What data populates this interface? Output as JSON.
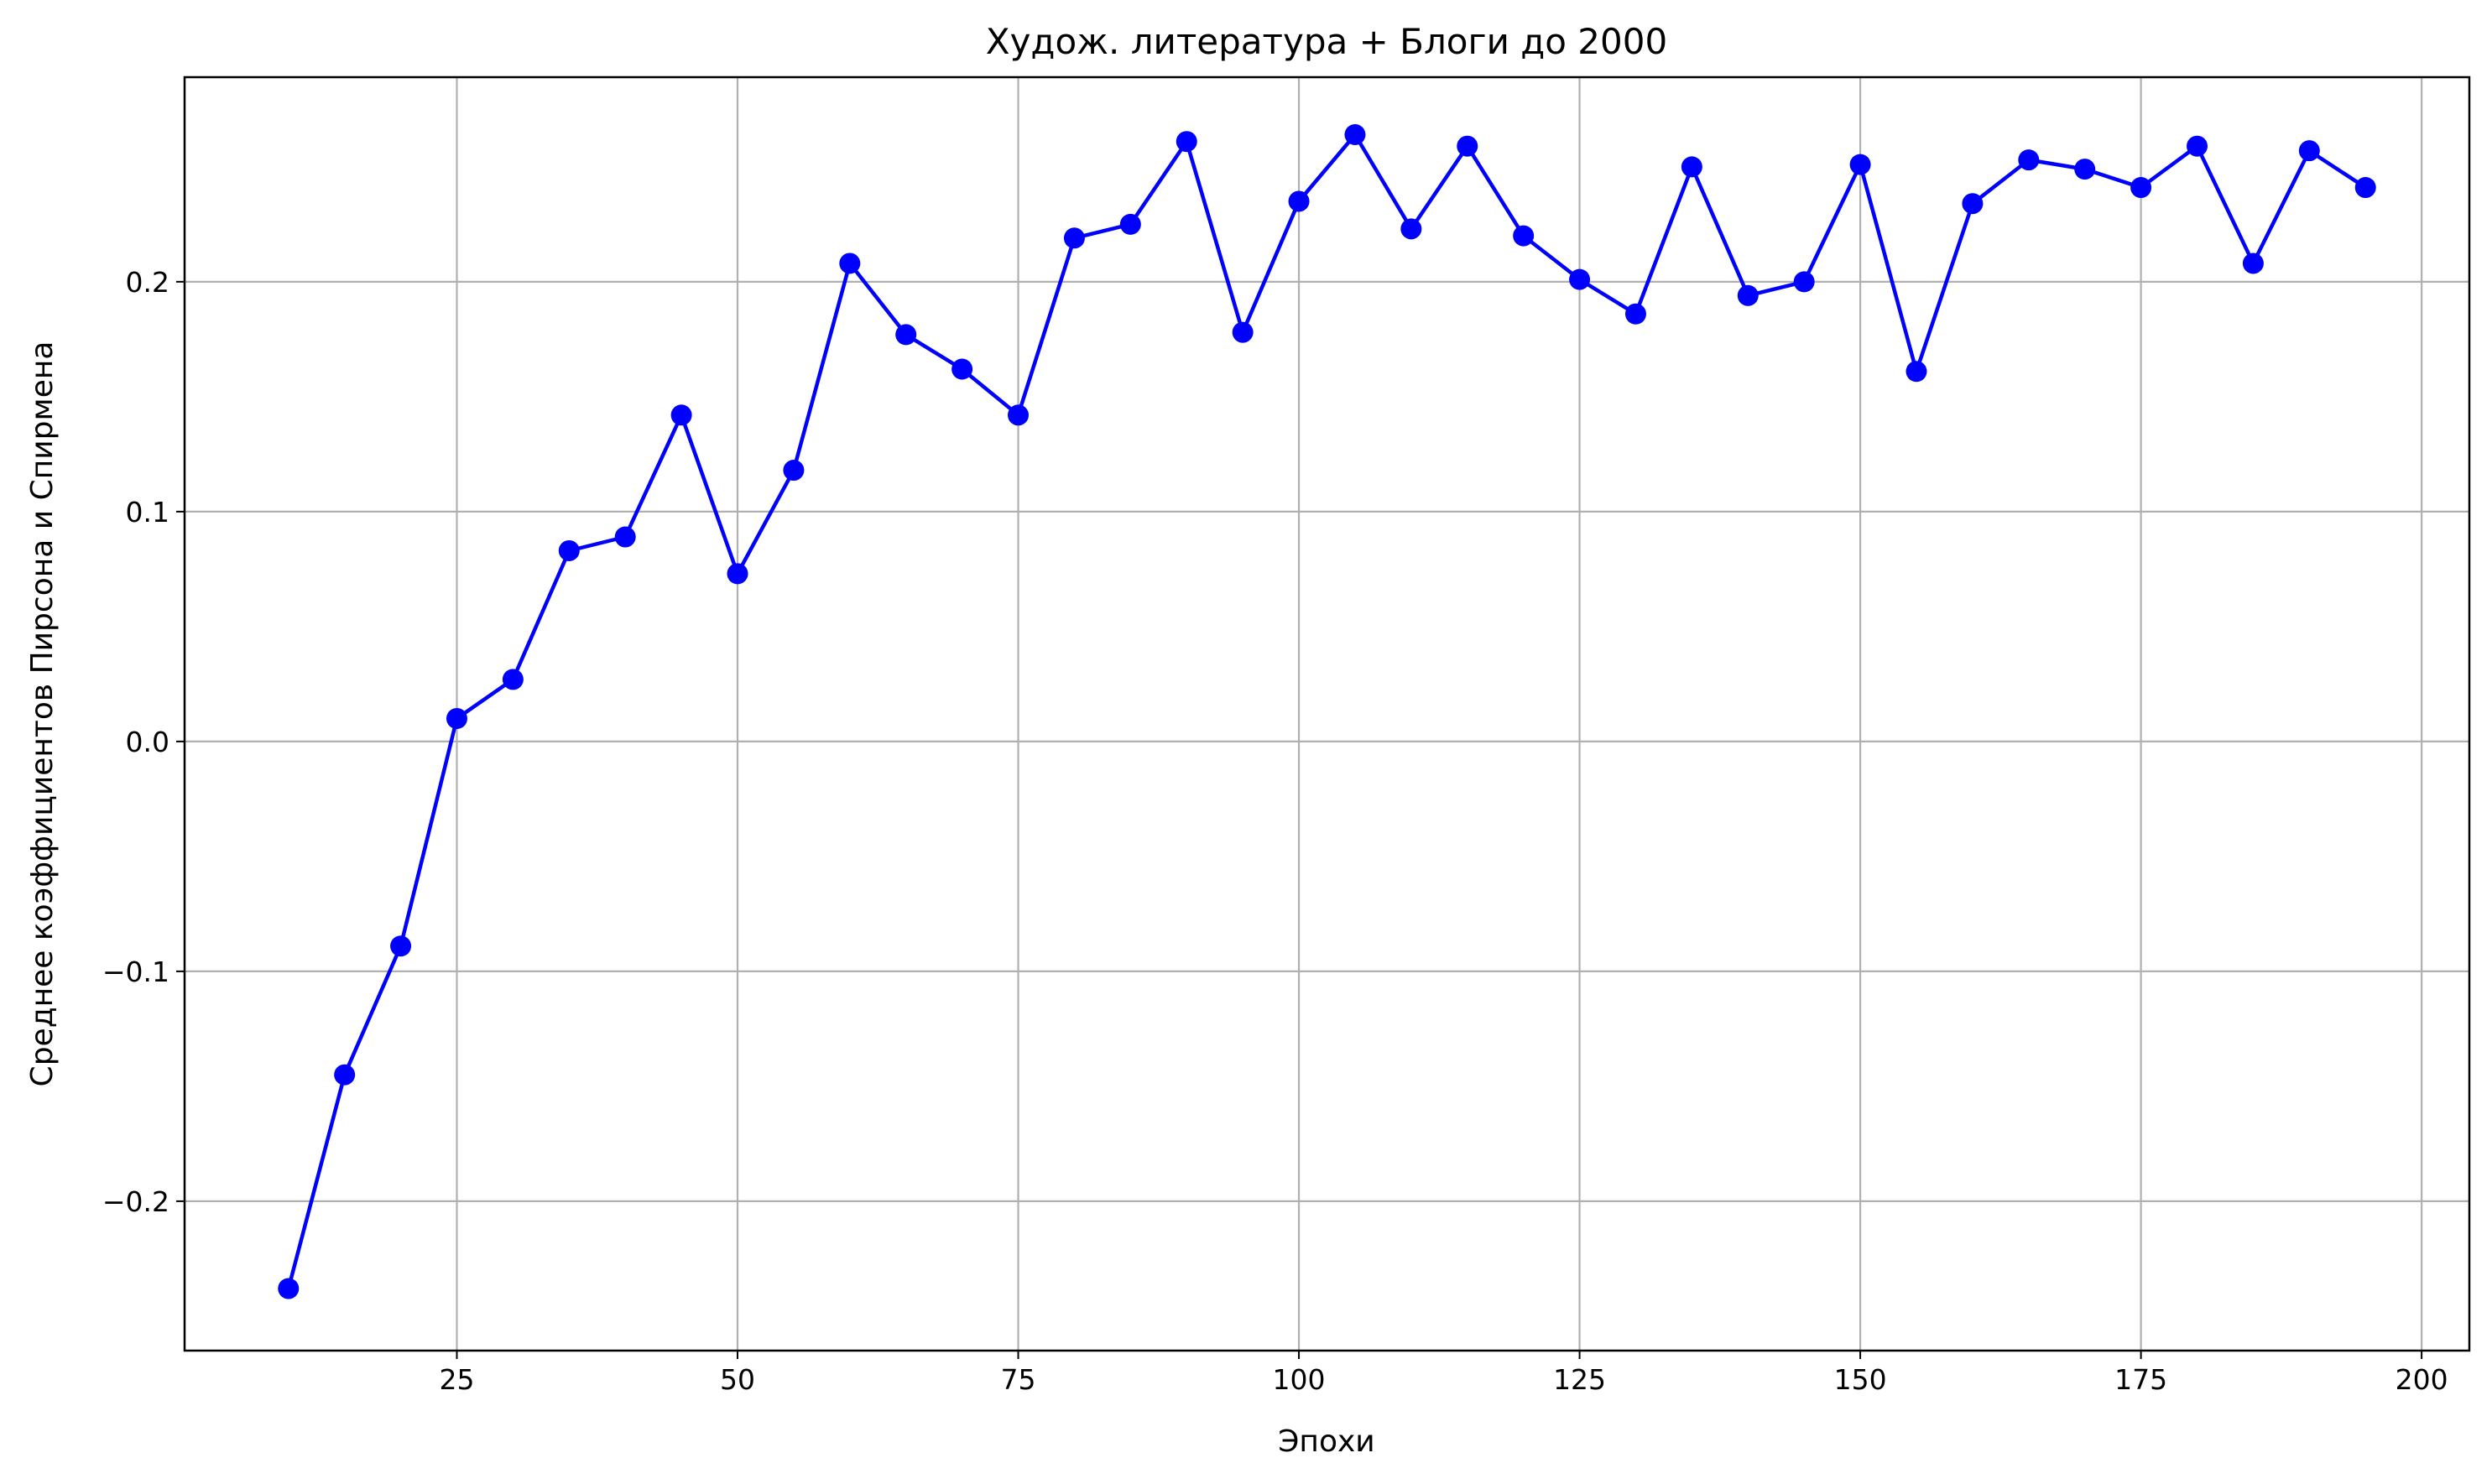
{
  "chart_data": {
    "type": "line",
    "title": "Худож. литература + Блоги до 2000",
    "xlabel": "Эпохи",
    "ylabel": "Среднее коэффициентов Пирсона и Спирмена",
    "xlim": [
      0.75,
      204.25
    ],
    "ylim": [
      -0.265,
      0.289
    ],
    "xticks": [
      {
        "value": 25,
        "label": "25"
      },
      {
        "value": 50,
        "label": "50"
      },
      {
        "value": 75,
        "label": "75"
      },
      {
        "value": 100,
        "label": "100"
      },
      {
        "value": 125,
        "label": "125"
      },
      {
        "value": 150,
        "label": "150"
      },
      {
        "value": 175,
        "label": "175"
      },
      {
        "value": 200,
        "label": "200"
      }
    ],
    "yticks": [
      {
        "value": -0.2,
        "label": "−0.2"
      },
      {
        "value": -0.1,
        "label": "−0.1"
      },
      {
        "value": 0.0,
        "label": "0.0"
      },
      {
        "value": 0.1,
        "label": "0.1"
      },
      {
        "value": 0.2,
        "label": "0.2"
      }
    ],
    "grid": true,
    "colors": {
      "line": "#0000ff",
      "marker": "#0000ff",
      "grid": "#b0b0b0"
    },
    "series": [
      {
        "x": [
          10,
          15,
          20,
          25,
          30,
          35,
          40,
          45,
          50,
          55,
          60,
          65,
          70,
          75,
          80,
          85,
          90,
          95,
          100,
          105,
          110,
          115,
          120,
          125,
          130,
          135,
          140,
          145,
          150,
          155,
          160,
          165,
          170,
          175,
          180,
          185,
          190,
          195
        ],
        "y": [
          -0.238,
          -0.145,
          -0.089,
          0.01,
          0.027,
          0.083,
          0.089,
          0.142,
          0.073,
          0.118,
          0.208,
          0.177,
          0.162,
          0.142,
          0.219,
          0.225,
          0.261,
          0.178,
          0.235,
          0.264,
          0.223,
          0.259,
          0.22,
          0.201,
          0.186,
          0.25,
          0.194,
          0.2,
          0.251,
          0.161,
          0.234,
          0.253,
          0.249,
          0.241,
          0.259,
          0.208,
          0.257,
          0.241
        ]
      }
    ]
  }
}
